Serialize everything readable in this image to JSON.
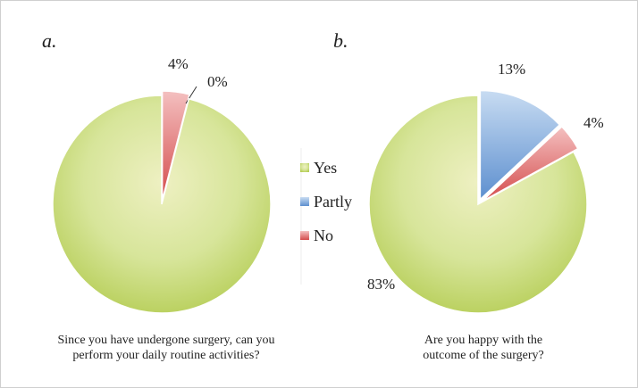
{
  "chart_data": [
    {
      "type": "pie",
      "panel_label": "a.",
      "question_lines": [
        "Since you have undergone surgery, can you",
        "perform your daily routine activities?"
      ],
      "slices": [
        {
          "name": "No",
          "value": 4,
          "label": "4%",
          "exploded": true
        },
        {
          "name": "Partly",
          "value": 0,
          "label": "0%",
          "exploded": false
        },
        {
          "name": "Yes",
          "value": 96,
          "label": "",
          "exploded": false
        }
      ]
    },
    {
      "type": "pie",
      "panel_label": "b.",
      "question_lines": [
        "Are you happy with the",
        "outcome of the surgery?"
      ],
      "slices": [
        {
          "name": "Partly",
          "value": 13,
          "label": "13%",
          "exploded": true
        },
        {
          "name": "No",
          "value": 4,
          "label": "4%",
          "exploded": true
        },
        {
          "name": "Yes",
          "value": 83,
          "label": "83%",
          "exploded": false
        }
      ]
    }
  ],
  "legend": {
    "items": [
      {
        "name": "Yes",
        "color": "#b9d260"
      },
      {
        "name": "Partly",
        "color": "#6f9fd6"
      },
      {
        "name": "No",
        "color": "#e06a6a"
      }
    ]
  },
  "colors": {
    "Yes": "#b9d260",
    "Partly": "#6f9fd6",
    "No": "#e06a6a"
  }
}
